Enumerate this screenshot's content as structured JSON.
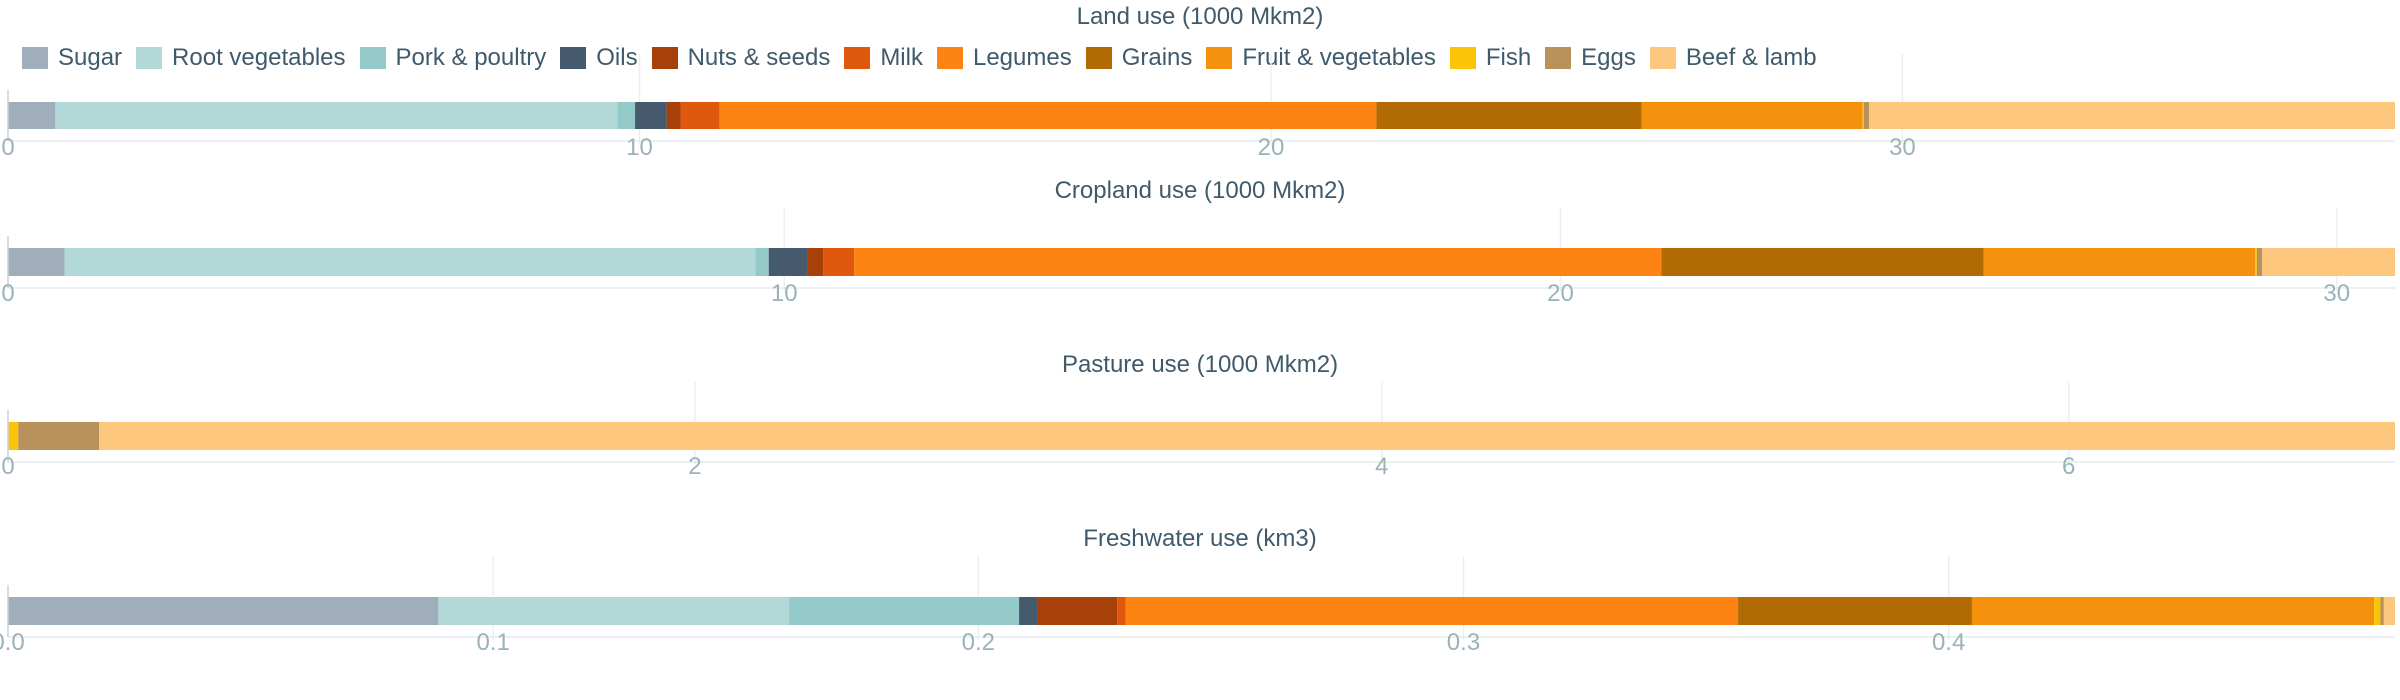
{
  "colors": {
    "Sugar": "#a0adba",
    "Root vegetables": "#b3d8d8",
    "Pork & poultry": "#94c9c9",
    "Oils": "#455a6d",
    "Nuts & seeds": "#a8400a",
    "Milk": "#e0580e",
    "Legumes": "#fd8412",
    "Grains": "#b26a05",
    "Fruit & vegetables": "#f4920d",
    "Fish": "#fcc409",
    "Eggs": "#b8925a",
    "Beef & lamb": "#fec77e",
    "grid": "#eceff1",
    "axis": "#9ab3b8",
    "text": "#3f5a6b"
  },
  "legend": [
    "Sugar",
    "Root vegetables",
    "Pork & poultry",
    "Oils",
    "Nuts & seeds",
    "Milk",
    "Legumes",
    "Grains",
    "Fruit & vegetables",
    "Fish",
    "Eggs",
    "Beef & lamb"
  ],
  "chart_data": [
    {
      "type": "bar",
      "orientation": "horizontal",
      "stacked": true,
      "title": "Land use (1000 Mkm2)",
      "xlim": [
        0,
        37.8
      ],
      "ticks": [
        0,
        10,
        20,
        30
      ],
      "tick_labels": [
        "0",
        "10",
        "20",
        "30"
      ],
      "segments": [
        {
          "name": "Sugar",
          "value": 0.75
        },
        {
          "name": "Root vegetables",
          "value": 8.9
        },
        {
          "name": "Pork & poultry",
          "value": 0.28
        },
        {
          "name": "Oils",
          "value": 0.5
        },
        {
          "name": "Nuts & seeds",
          "value": 0.22
        },
        {
          "name": "Milk",
          "value": 0.62
        },
        {
          "name": "Legumes",
          "value": 10.4
        },
        {
          "name": "Grains",
          "value": 4.2
        },
        {
          "name": "Fruit & vegetables",
          "value": 3.5
        },
        {
          "name": "Fish",
          "value": 0.02
        },
        {
          "name": "Eggs",
          "value": 0.08
        },
        {
          "name": "Beef & lamb",
          "value": 8.33
        }
      ]
    },
    {
      "type": "bar",
      "orientation": "horizontal",
      "stacked": true,
      "title": "Cropland use (1000 Mkm2)",
      "xlim": [
        0,
        30.75
      ],
      "ticks": [
        0,
        10,
        20,
        30
      ],
      "tick_labels": [
        "0",
        "10",
        "20",
        "30"
      ],
      "segments": [
        {
          "name": "Sugar",
          "value": 0.73
        },
        {
          "name": "Root vegetables",
          "value": 8.9
        },
        {
          "name": "Pork & poultry",
          "value": 0.17
        },
        {
          "name": "Oils",
          "value": 0.5
        },
        {
          "name": "Nuts & seeds",
          "value": 0.2
        },
        {
          "name": "Milk",
          "value": 0.4
        },
        {
          "name": "Legumes",
          "value": 10.4
        },
        {
          "name": "Grains",
          "value": 4.15
        },
        {
          "name": "Fruit & vegetables",
          "value": 3.5
        },
        {
          "name": "Fish",
          "value": 0.02
        },
        {
          "name": "Eggs",
          "value": 0.07
        },
        {
          "name": "Beef & lamb",
          "value": 1.71
        }
      ]
    },
    {
      "type": "bar",
      "orientation": "horizontal",
      "stacked": true,
      "title": "Pasture use (1000 Mkm2)",
      "xlim": [
        0,
        6.95
      ],
      "ticks": [
        0,
        2,
        4,
        6
      ],
      "tick_labels": [
        "0",
        "2",
        "4",
        "6"
      ],
      "segments": [
        {
          "name": "Fish",
          "value": 0.03
        },
        {
          "name": "Eggs",
          "value": 0.235
        },
        {
          "name": "Beef & lamb",
          "value": 6.685
        }
      ]
    },
    {
      "type": "bar",
      "orientation": "horizontal",
      "stacked": true,
      "title": "Freshwater use (km3)",
      "xlim": [
        0,
        0.492
      ],
      "ticks": [
        0,
        0.1,
        0.2,
        0.3,
        0.4
      ],
      "tick_labels": [
        "0.0",
        "0.1",
        "0.2",
        "0.3",
        "0.4"
      ],
      "segments": [
        {
          "name": "Sugar",
          "value": 0.0887
        },
        {
          "name": "Root vegetables",
          "value": 0.0723
        },
        {
          "name": "Pork & poultry",
          "value": 0.0474
        },
        {
          "name": "Oils",
          "value": 0.0037
        },
        {
          "name": "Nuts & seeds",
          "value": 0.0165
        },
        {
          "name": "Milk",
          "value": 0.0018
        },
        {
          "name": "Legumes",
          "value": 0.1262
        },
        {
          "name": "Grains",
          "value": 0.0482
        },
        {
          "name": "Fruit & vegetables",
          "value": 0.0829
        },
        {
          "name": "Fish",
          "value": 0.0013
        },
        {
          "name": "Eggs",
          "value": 0.0007
        },
        {
          "name": "Beef & lamb",
          "value": 0.0023
        }
      ]
    }
  ]
}
